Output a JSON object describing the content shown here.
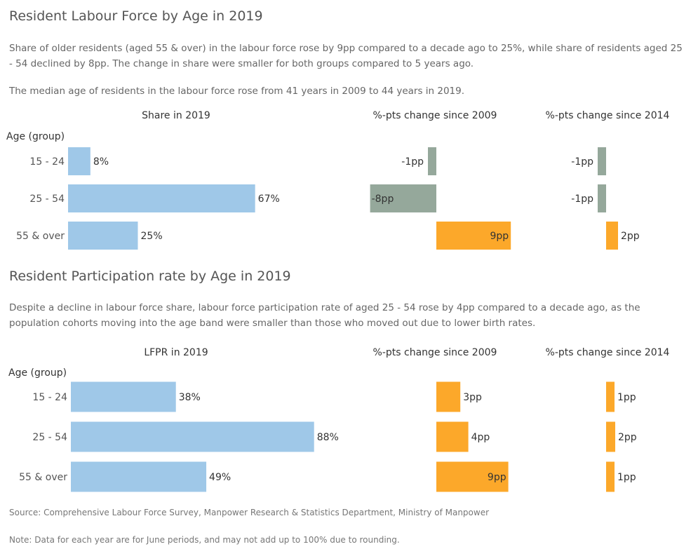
{
  "section1": {
    "title": "Resident Labour Force by Age in 2019",
    "description": "Share of older residents (aged 55 & over) in the labour force rose by 9pp compared to a decade ago to 25%, while share of residents aged 25 - 54 declined by 8pp. The change in share were smaller for both groups compared to  5 years ago.",
    "description2": "The median age of residents in the labour force rose from 41 years in 2009 to 44 years in 2019."
  },
  "section2": {
    "title": "Resident Participation rate by Age in 2019",
    "description": "Despite a decline in labour force share, labour force participation rate of aged 25 - 54 rose by 4pp compared to a decade ago, as the population cohorts moving into the age band were smaller than those who moved out due to lower birth rates."
  },
  "footer": {
    "source": "Source: Comprehensive Labour Force Survey, Manpower Research & Statistics Department, Ministry of Manpower",
    "note": "Note: Data for each year are for June periods, and may not add up to 100% due to rounding."
  },
  "colors": {
    "share": "#9fc8e8",
    "negative": "#95a89b",
    "positive": "#fca82a",
    "text": "#333333"
  },
  "chart_data": [
    {
      "type": "bar",
      "orientation": "horizontal",
      "row_header": "Age (group)",
      "categories": [
        "15 - 24",
        "25 - 54",
        "55 & over"
      ],
      "panels": [
        {
          "title": "Share in 2019",
          "values": [
            8,
            67,
            25
          ],
          "labels": [
            "8%",
            "67%",
            "25%"
          ],
          "xlim": [
            0,
            100
          ]
        },
        {
          "title": "%-pts change since 2009",
          "values": [
            -1,
            -8,
            9
          ],
          "labels": [
            "-1pp",
            "-8pp",
            "9pp"
          ],
          "xlim": [
            -10,
            10
          ]
        },
        {
          "title": "%-pts change since 2014",
          "values": [
            -1,
            -1,
            2
          ],
          "labels": [
            "-1pp",
            "-1pp",
            "2pp"
          ],
          "xlim": [
            -10,
            10
          ]
        }
      ]
    },
    {
      "type": "bar",
      "orientation": "horizontal",
      "row_header": "Age (group)",
      "categories": [
        "15 - 24",
        "25 - 54",
        "55 & over"
      ],
      "panels": [
        {
          "title": "LFPR in 2019",
          "values": [
            38,
            88,
            49
          ],
          "labels": [
            "38%",
            "88%",
            "49%"
          ],
          "xlim": [
            0,
            100
          ]
        },
        {
          "title": "%-pts change since 2009",
          "values": [
            3,
            4,
            9
          ],
          "labels": [
            "3pp",
            "4pp",
            "9pp"
          ],
          "xlim": [
            -10,
            10
          ]
        },
        {
          "title": "%-pts change since 2014",
          "values": [
            1,
            2,
            1
          ],
          "labels": [
            "1pp",
            "2pp",
            "1pp"
          ],
          "xlim": [
            -10,
            10
          ]
        }
      ]
    }
  ]
}
